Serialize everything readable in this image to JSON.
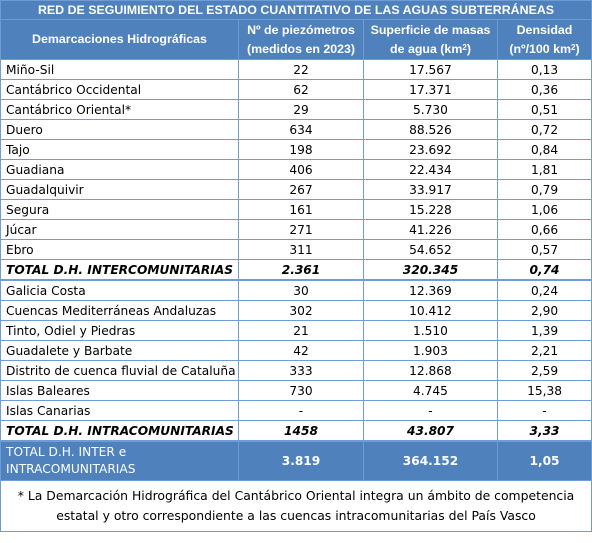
{
  "title": "RED DE SEGUIMIENTO DEL ESTADO CUANTITATIVO DE LAS AGUAS SUBTERRÁNEAS",
  "headers": {
    "col1": "Demarcaciones Hidrográficas",
    "col2": "Nº de piezómetros (medidos en 2023)",
    "col3_main": "Superficie de masas de agua (km",
    "col3_sup": "2",
    "col3_end": ")",
    "col4_main": "Densidad (nº/100 km",
    "col4_sup": "2",
    "col4_end": ")"
  },
  "inter_rows": [
    {
      "name": "Miño-Sil",
      "piezometros": "22",
      "superficie": "17.567",
      "densidad": "0,13"
    },
    {
      "name": "Cantábrico Occidental",
      "piezometros": "62",
      "superficie": "17.371",
      "densidad": "0,36"
    },
    {
      "name": "Cantábrico Oriental*",
      "piezometros": "29",
      "superficie": "5.730",
      "densidad": "0,51"
    },
    {
      "name": "Duero",
      "piezometros": "634",
      "superficie": "88.526",
      "densidad": "0,72"
    },
    {
      "name": "Tajo",
      "piezometros": "198",
      "superficie": "23.692",
      "densidad": "0,84"
    },
    {
      "name": "Guadiana",
      "piezometros": "406",
      "superficie": "22.434",
      "densidad": "1,81"
    },
    {
      "name": "Guadalquivir",
      "piezometros": "267",
      "superficie": "33.917",
      "densidad": "0,79"
    },
    {
      "name": "Segura",
      "piezometros": "161",
      "superficie": "15.228",
      "densidad": "1,06"
    },
    {
      "name": "Júcar",
      "piezometros": "271",
      "superficie": "41.226",
      "densidad": "0,66"
    },
    {
      "name": "Ebro",
      "piezometros": "311",
      "superficie": "54.652",
      "densidad": "0,57"
    }
  ],
  "total_inter": {
    "name": "TOTAL D.H. INTERCOMUNITARIAS",
    "piezometros": "2.361",
    "superficie": "320.345",
    "densidad": "0,74"
  },
  "intra_rows": [
    {
      "name": "Galicia Costa",
      "piezometros": "30",
      "superficie": "12.369",
      "densidad": "0,24"
    },
    {
      "name": "Cuencas Mediterráneas Andaluzas",
      "piezometros": "302",
      "superficie": "10.412",
      "densidad": "2,90"
    },
    {
      "name": "Tinto, Odiel y Piedras",
      "piezometros": "21",
      "superficie": "1.510",
      "densidad": "1,39"
    },
    {
      "name": "Guadalete y Barbate",
      "piezometros": "42",
      "superficie": "1.903",
      "densidad": "2,21"
    },
    {
      "name": "Distrito de cuenca fluvial de Cataluña",
      "piezometros": "333",
      "superficie": "12.868",
      "densidad": "2,59"
    },
    {
      "name": "Islas Baleares",
      "piezometros": "730",
      "superficie": "4.745",
      "densidad": "15,38"
    },
    {
      "name": "Islas Canarias",
      "piezometros": "-",
      "superficie": "-",
      "densidad": "-"
    }
  ],
  "total_intra": {
    "name": "TOTAL D.H. INTRACOMUNITARIAS",
    "piezometros": "1458",
    "superficie": "43.807",
    "densidad": "3,33"
  },
  "total_all": {
    "name": "TOTAL D.H. INTER e INTRACOMUNITARIAS",
    "piezometros": "3.819",
    "superficie": "364.152",
    "densidad": "1,05"
  },
  "footnote": "* La Demarcación Hidrográfica del Cantábrico Oriental integra un ámbito de competencia estatal y otro correspondiente a las cuencas intracomunitarias del País Vasco",
  "colors": {
    "header_bg": "#4f81bd",
    "border": "#6f9bd6",
    "header_text": "#ffffff"
  }
}
